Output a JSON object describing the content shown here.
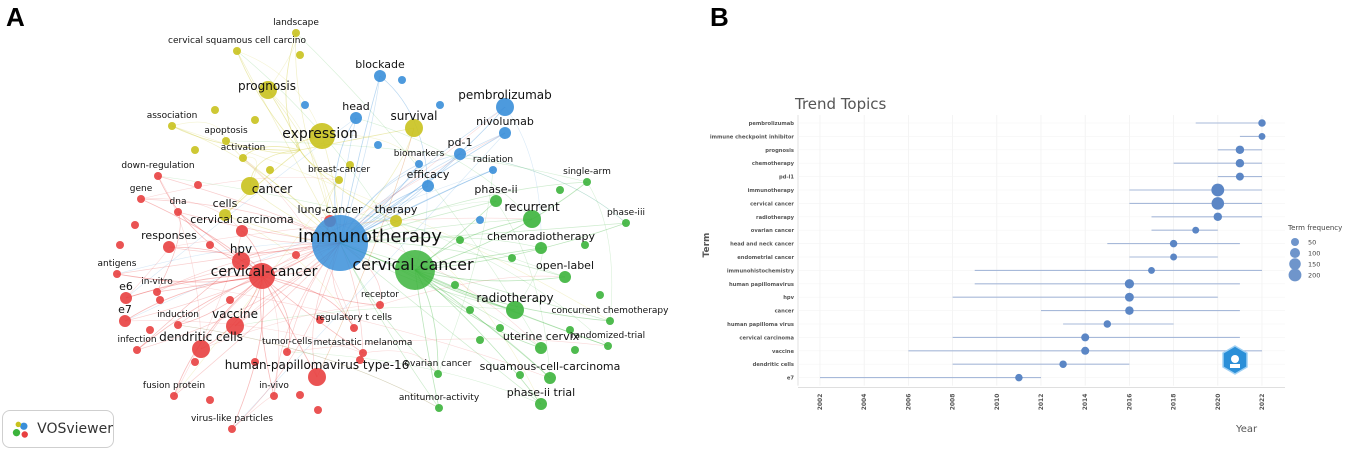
{
  "panels": {
    "a": "A",
    "b": "B"
  },
  "badge": {
    "label": "VOSviewer"
  },
  "network": {
    "colors": {
      "red": "#e84040",
      "green": "#3cb43c",
      "blue": "#3a8fd9",
      "yellow": "#c9c21e"
    },
    "nodes": [
      {
        "label": "landscape",
        "c": "yellow",
        "s": 1
      },
      {
        "label": "cervical squamous cell carcino",
        "c": "yellow",
        "s": 1
      },
      {
        "label": "blockade",
        "c": "blue",
        "s": 2
      },
      {
        "label": "prognosis",
        "c": "yellow",
        "s": 3
      },
      {
        "label": "pembrolizumab",
        "c": "blue",
        "s": 3
      },
      {
        "label": "head",
        "c": "blue",
        "s": 2
      },
      {
        "label": "association",
        "c": "yellow",
        "s": 1
      },
      {
        "label": "survival",
        "c": "yellow",
        "s": 3
      },
      {
        "label": "nivolumab",
        "c": "blue",
        "s": 2
      },
      {
        "label": "apoptosis",
        "c": "yellow",
        "s": 1
      },
      {
        "label": "expression",
        "c": "yellow",
        "s": 4
      },
      {
        "label": "activation",
        "c": "yellow",
        "s": 1
      },
      {
        "label": "pd-1",
        "c": "blue",
        "s": 2
      },
      {
        "label": "biomarkers",
        "c": "blue",
        "s": 1
      },
      {
        "label": "radiation",
        "c": "blue",
        "s": 1
      },
      {
        "label": "down-regulation",
        "c": "red",
        "s": 1
      },
      {
        "label": "breast-cancer",
        "c": "yellow",
        "s": 1
      },
      {
        "label": "efficacy",
        "c": "blue",
        "s": 2
      },
      {
        "label": "single-arm",
        "c": "green",
        "s": 1
      },
      {
        "label": "gene",
        "c": "red",
        "s": 1
      },
      {
        "label": "cancer",
        "c": "yellow",
        "s": 3
      },
      {
        "label": "phase-ii",
        "c": "green",
        "s": 2
      },
      {
        "label": "dna",
        "c": "red",
        "s": 1
      },
      {
        "label": "cells",
        "c": "yellow",
        "s": 2
      },
      {
        "label": "lung-cancer",
        "c": "red",
        "s": 2
      },
      {
        "label": "therapy",
        "c": "yellow",
        "s": 2
      },
      {
        "label": "recurrent",
        "c": "green",
        "s": 3
      },
      {
        "label": "phase-iii",
        "c": "green",
        "s": 1
      },
      {
        "label": "cervical carcinoma",
        "c": "red",
        "s": 2
      },
      {
        "label": "responses",
        "c": "red",
        "s": 2
      },
      {
        "label": "immunotherapy",
        "c": "blue",
        "s": 6
      },
      {
        "label": "chemoradiotherapy",
        "c": "green",
        "s": 2
      },
      {
        "label": "hpv",
        "c": "red",
        "s": 3
      },
      {
        "label": "antigens",
        "c": "red",
        "s": 1
      },
      {
        "label": "cervical cancer",
        "c": "green",
        "s": 5
      },
      {
        "label": "cervical-cancer",
        "c": "red",
        "s": 4
      },
      {
        "label": "open-label",
        "c": "green",
        "s": 2
      },
      {
        "label": "in-vitro",
        "c": "red",
        "s": 1
      },
      {
        "label": "e6",
        "c": "red",
        "s": 2
      },
      {
        "label": "receptor",
        "c": "red",
        "s": 1
      },
      {
        "label": "radiotherapy",
        "c": "green",
        "s": 3
      },
      {
        "label": "e7",
        "c": "red",
        "s": 2
      },
      {
        "label": "induction",
        "c": "red",
        "s": 1
      },
      {
        "label": "vaccine",
        "c": "red",
        "s": 3
      },
      {
        "label": "regulatory t cells",
        "c": "red",
        "s": 1
      },
      {
        "label": "concurrent chemotherapy",
        "c": "green",
        "s": 1
      },
      {
        "label": "randomized-trial",
        "c": "green",
        "s": 1
      },
      {
        "label": "infection",
        "c": "red",
        "s": 1
      },
      {
        "label": "dendritic cells",
        "c": "red",
        "s": 3
      },
      {
        "label": "tumor-cells",
        "c": "red",
        "s": 1
      },
      {
        "label": "metastatic melanoma",
        "c": "red",
        "s": 1
      },
      {
        "label": "uterine cervix",
        "c": "green",
        "s": 2
      },
      {
        "label": "human-papillomavirus type-16",
        "c": "red",
        "s": 3
      },
      {
        "label": "ovarian cancer",
        "c": "green",
        "s": 1
      },
      {
        "label": "squamous-cell-carcinoma",
        "c": "green",
        "s": 2
      },
      {
        "label": "fusion protein",
        "c": "red",
        "s": 1
      },
      {
        "label": "in-vivo",
        "c": "red",
        "s": 1
      },
      {
        "label": "antitumor-activity",
        "c": "green",
        "s": 1
      },
      {
        "label": "phase-ii trial",
        "c": "green",
        "s": 2
      },
      {
        "label": "virus-like particles",
        "c": "red",
        "s": 1
      }
    ]
  },
  "chart_data": {
    "type": "scatter",
    "title": "Trend Topics",
    "xlabel": "Year",
    "ylabel": "Term",
    "xlim": [
      2002,
      2022
    ],
    "xticks": [
      "2002",
      "2004",
      "2006",
      "2008",
      "2010",
      "2012",
      "2014",
      "2016",
      "2018",
      "2020",
      "2022"
    ],
    "legend": {
      "title": "Term frequency",
      "position": "right",
      "entries": [
        50,
        100,
        150,
        200
      ]
    },
    "terms": [
      {
        "term": "pembrolizumab",
        "start": 2019,
        "median": 2022,
        "end": 2022,
        "freq": 40
      },
      {
        "term": "immune checkpoint inhibitor",
        "start": 2021,
        "median": 2022,
        "end": 2022,
        "freq": 30
      },
      {
        "term": "prognosis",
        "start": 2020,
        "median": 2021,
        "end": 2022,
        "freq": 60
      },
      {
        "term": "chemotherapy",
        "start": 2018,
        "median": 2021,
        "end": 2022,
        "freq": 60
      },
      {
        "term": "pd-l1",
        "start": 2020,
        "median": 2021,
        "end": 2022,
        "freq": 50
      },
      {
        "term": "immunotherapy",
        "start": 2016,
        "median": 2020,
        "end": 2022,
        "freq": 200
      },
      {
        "term": "cervical cancer",
        "start": 2016,
        "median": 2020,
        "end": 2022,
        "freq": 190
      },
      {
        "term": "radiotherapy",
        "start": 2017,
        "median": 2020,
        "end": 2022,
        "freq": 60
      },
      {
        "term": "ovarian cancer",
        "start": 2017,
        "median": 2019,
        "end": 2020,
        "freq": 30
      },
      {
        "term": "head and neck cancer",
        "start": 2015,
        "median": 2018,
        "end": 2021,
        "freq": 40
      },
      {
        "term": "endometrial cancer",
        "start": 2016,
        "median": 2018,
        "end": 2020,
        "freq": 30
      },
      {
        "term": "immunohistochemistry",
        "start": 2009,
        "median": 2017,
        "end": 2022,
        "freq": 30
      },
      {
        "term": "human papillomavirus",
        "start": 2009,
        "median": 2016,
        "end": 2021,
        "freq": 80
      },
      {
        "term": "hpv",
        "start": 2008,
        "median": 2016,
        "end": 2020,
        "freq": 70
      },
      {
        "term": "cancer",
        "start": 2012,
        "median": 2016,
        "end": 2021,
        "freq": 60
      },
      {
        "term": "human papilloma virus",
        "start": 2013,
        "median": 2015,
        "end": 2018,
        "freq": 40
      },
      {
        "term": "cervical carcinoma",
        "start": 2008,
        "median": 2014,
        "end": 2021,
        "freq": 50
      },
      {
        "term": "vaccine",
        "start": 2006,
        "median": 2014,
        "end": 2022,
        "freq": 50
      },
      {
        "term": "dendritic cells",
        "start": 2008,
        "median": 2013,
        "end": 2016,
        "freq": 40
      },
      {
        "term": "e7",
        "start": 2002,
        "median": 2011,
        "end": 2012,
        "freq": 40
      }
    ]
  }
}
